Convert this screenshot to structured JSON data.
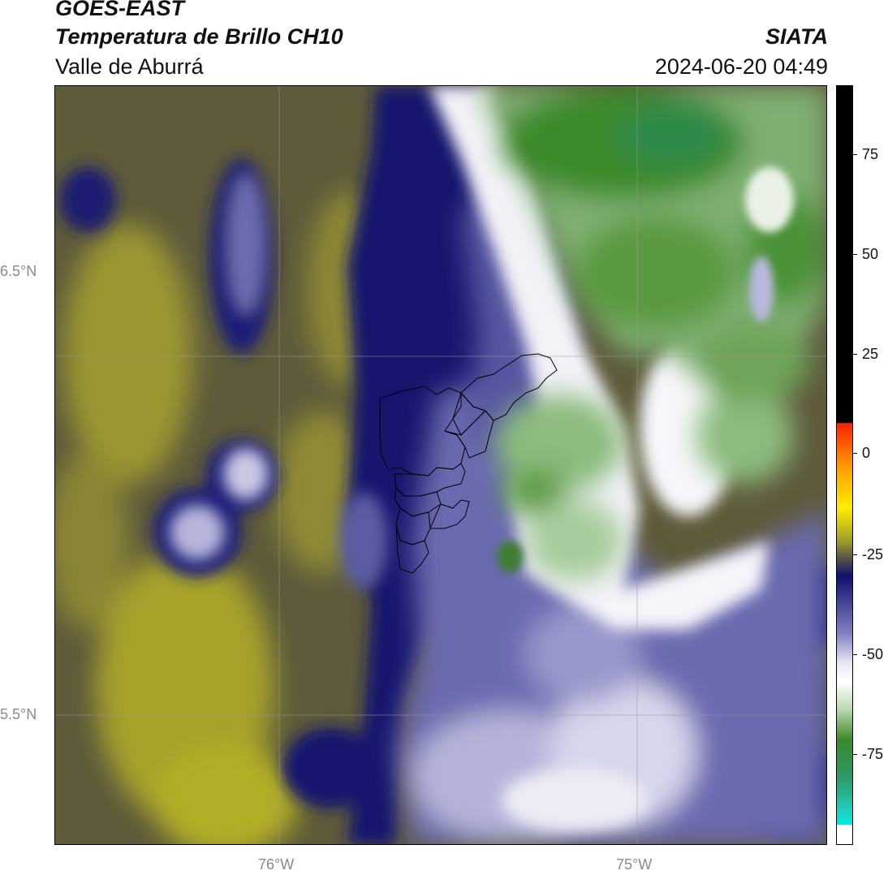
{
  "header": {
    "satellite": "GOES-EAST",
    "product": "Temperatura de Brillo CH10",
    "region": "Valle de Aburrá",
    "organization": "SIATA",
    "datetime": "2024-06-20 04:49"
  },
  "map": {
    "lat_labels": [
      "6.5°N",
      "5.5°N"
    ],
    "lon_labels": [
      "76°W",
      "75°W"
    ],
    "extent": {
      "lon_min": -76.62,
      "lon_max": -74.47,
      "lat_min": 5.14,
      "lat_max": 7.25
    },
    "gridlines": true
  },
  "colorbar": {
    "ticks": [
      75,
      50,
      25,
      0,
      -25,
      -50,
      -75
    ],
    "range": [
      -95,
      90
    ],
    "colors": {
      "black": "#000000",
      "red": "#ff2a00",
      "orange": "#ff9900",
      "yellow": "#ffff00",
      "olive": "#9a9a2a",
      "navy": "#10106e",
      "lavender": "#a0a0d0",
      "white": "#ffffff",
      "green": "#3c8a2a",
      "teal": "#20c8b0",
      "cyan": "#00e8e8"
    }
  }
}
